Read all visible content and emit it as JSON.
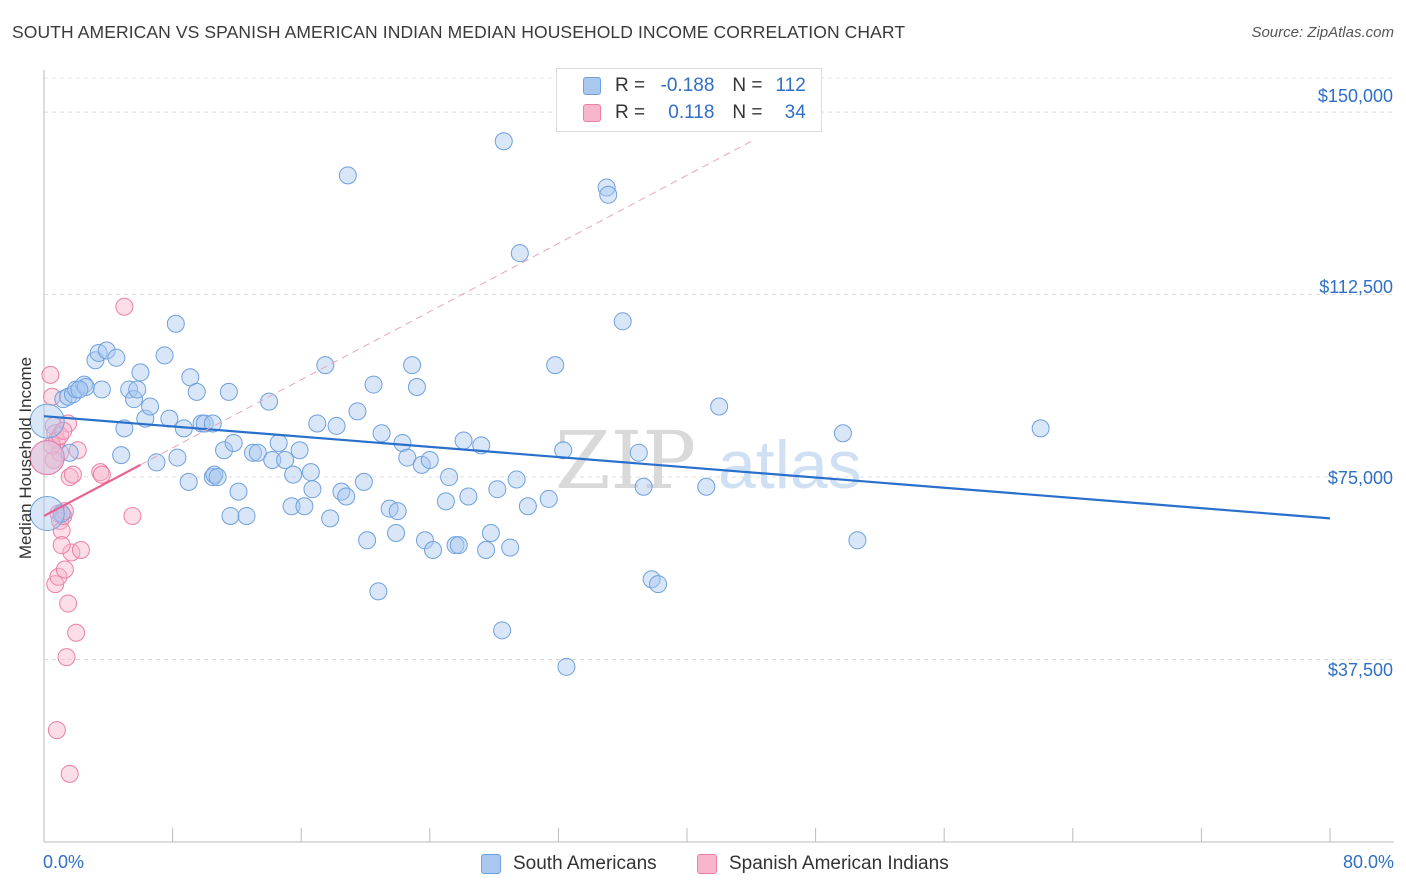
{
  "header": {
    "title": "SOUTH AMERICAN VS SPANISH AMERICAN INDIAN MEDIAN HOUSEHOLD INCOME CORRELATION CHART",
    "source": "Source: ZipAtlas.com"
  },
  "watermark": {
    "zip": "ZIP",
    "atlas": "atlas"
  },
  "legend": {
    "rows": [
      {
        "r_label": "R =",
        "r_value": "-0.188",
        "n_label": "N =",
        "n_value": "112",
        "color": "#a8c8f0"
      },
      {
        "r_label": "R =",
        "r_value": "0.118",
        "n_label": "N =",
        "n_value": "34",
        "color": "#f7b6cb"
      }
    ]
  },
  "bottom_legend": {
    "south": "South Americans",
    "spanish": "Spanish American Indians"
  },
  "chart_data": {
    "type": "scatter",
    "ylabel": "Median Household Income",
    "xlim": [
      0,
      80
    ],
    "ylim": [
      0,
      157000
    ],
    "x_tick_labels": [
      "0.0%",
      "80.0%"
    ],
    "y_ticks": [
      37500,
      75000,
      112500,
      150000
    ],
    "y_tick_labels": [
      "$37,500",
      "$75,000",
      "$112,500",
      "$150,000"
    ],
    "grid": true,
    "colors": {
      "blue": "#6fa1de",
      "pink": "#ec7fa6",
      "blue_line": "#2970cc",
      "pink_line": "#e8638f"
    },
    "series": [
      {
        "name": "South Americans",
        "color": "#a8c8f0",
        "trend": {
          "x": [
            0,
            80
          ],
          "y": [
            87500,
            66500
          ]
        },
        "points": [
          [
            1.2,
            91000
          ],
          [
            1.5,
            91500
          ],
          [
            1.8,
            92000
          ],
          [
            2.0,
            93000
          ],
          [
            2.5,
            94000
          ],
          [
            3.2,
            99000
          ],
          [
            3.4,
            100500
          ],
          [
            3.9,
            101000
          ],
          [
            4.5,
            99500
          ],
          [
            3.6,
            93000
          ],
          [
            5.3,
            93000
          ],
          [
            2.6,
            93500
          ],
          [
            5.0,
            85000
          ],
          [
            4.8,
            79500
          ],
          [
            5.6,
            91000
          ],
          [
            5.8,
            93000
          ],
          [
            6.0,
            96500
          ],
          [
            6.3,
            87000
          ],
          [
            6.6,
            89500
          ],
          [
            7.0,
            78000
          ],
          [
            7.5,
            100000
          ],
          [
            7.8,
            87000
          ],
          [
            8.2,
            106500
          ],
          [
            8.3,
            79000
          ],
          [
            8.7,
            85000
          ],
          [
            9.0,
            74000
          ],
          [
            9.1,
            95500
          ],
          [
            9.5,
            92500
          ],
          [
            9.8,
            86000
          ],
          [
            10.0,
            86000
          ],
          [
            10.5,
            86000
          ],
          [
            10.5,
            75000
          ],
          [
            10.6,
            75500
          ],
          [
            10.8,
            75000
          ],
          [
            11.2,
            80500
          ],
          [
            11.5,
            92500
          ],
          [
            11.6,
            67000
          ],
          [
            11.8,
            82000
          ],
          [
            12.1,
            72000
          ],
          [
            12.6,
            67000
          ],
          [
            13.0,
            80000
          ],
          [
            13.3,
            80000
          ],
          [
            14.0,
            90500
          ],
          [
            14.2,
            78500
          ],
          [
            14.6,
            82000
          ],
          [
            15.0,
            78500
          ],
          [
            15.4,
            69000
          ],
          [
            15.5,
            75500
          ],
          [
            15.9,
            80500
          ],
          [
            16.2,
            69000
          ],
          [
            16.6,
            76000
          ],
          [
            16.7,
            72500
          ],
          [
            17.0,
            86000
          ],
          [
            17.5,
            98000
          ],
          [
            17.8,
            66500
          ],
          [
            18.2,
            85500
          ],
          [
            18.5,
            72000
          ],
          [
            18.8,
            71000
          ],
          [
            18.9,
            137000
          ],
          [
            19.5,
            88500
          ],
          [
            19.9,
            74000
          ],
          [
            20.1,
            62000
          ],
          [
            20.5,
            94000
          ],
          [
            20.8,
            51500
          ],
          [
            21.0,
            84000
          ],
          [
            21.5,
            68500
          ],
          [
            21.9,
            63500
          ],
          [
            22.0,
            68000
          ],
          [
            22.3,
            82000
          ],
          [
            22.6,
            79000
          ],
          [
            22.9,
            98000
          ],
          [
            23.2,
            93500
          ],
          [
            23.5,
            77500
          ],
          [
            23.7,
            62000
          ],
          [
            24.0,
            78500
          ],
          [
            24.2,
            60000
          ],
          [
            25.0,
            70000
          ],
          [
            25.2,
            75000
          ],
          [
            25.6,
            61000
          ],
          [
            25.8,
            61000
          ],
          [
            26.1,
            82500
          ],
          [
            26.4,
            71000
          ],
          [
            27.2,
            81500
          ],
          [
            27.5,
            60000
          ],
          [
            27.8,
            63500
          ],
          [
            28.2,
            72500
          ],
          [
            28.5,
            43500
          ],
          [
            28.6,
            144000
          ],
          [
            29.0,
            60500
          ],
          [
            29.4,
            74500
          ],
          [
            29.6,
            121000
          ],
          [
            30.1,
            69000
          ],
          [
            31.4,
            70500
          ],
          [
            31.8,
            98000
          ],
          [
            32.3,
            80500
          ],
          [
            32.5,
            36000
          ],
          [
            35.0,
            134500
          ],
          [
            35.1,
            133000
          ],
          [
            36.0,
            107000
          ],
          [
            37.0,
            80000
          ],
          [
            37.3,
            73000
          ],
          [
            37.8,
            54000
          ],
          [
            38.2,
            53000
          ],
          [
            41.2,
            73000
          ],
          [
            42.0,
            89500
          ],
          [
            49.7,
            84000
          ],
          [
            50.6,
            62000
          ],
          [
            62.0,
            85000
          ],
          [
            1.1,
            67500
          ],
          [
            1.6,
            80000
          ],
          [
            2.2,
            93000
          ]
        ]
      },
      {
        "name": "Spanish American Indians",
        "color": "#f7b6cb",
        "trend": {
          "x": [
            0,
            6
          ],
          "y": [
            67000,
            77500
          ]
        },
        "points": [
          [
            0.4,
            96000
          ],
          [
            0.5,
            91500
          ],
          [
            0.6,
            85500
          ],
          [
            0.7,
            84000
          ],
          [
            0.8,
            82500
          ],
          [
            1.0,
            80000
          ],
          [
            0.6,
            78500
          ],
          [
            0.9,
            67500
          ],
          [
            1.0,
            66000
          ],
          [
            1.1,
            64000
          ],
          [
            1.2,
            67000
          ],
          [
            0.7,
            53000
          ],
          [
            0.9,
            54500
          ],
          [
            1.3,
            56000
          ],
          [
            1.5,
            49000
          ],
          [
            1.7,
            59500
          ],
          [
            1.6,
            75000
          ],
          [
            1.8,
            75500
          ],
          [
            2.1,
            80500
          ],
          [
            2.3,
            60000
          ],
          [
            2.0,
            43000
          ],
          [
            1.4,
            38000
          ],
          [
            0.8,
            23000
          ],
          [
            1.6,
            14000
          ],
          [
            1.5,
            86000
          ],
          [
            1.3,
            68000
          ],
          [
            1.1,
            61000
          ],
          [
            3.5,
            76000
          ],
          [
            3.6,
            75500
          ],
          [
            5.0,
            110000
          ],
          [
            5.5,
            67000
          ],
          [
            0.5,
            81500
          ],
          [
            1.0,
            83500
          ],
          [
            1.2,
            84500
          ]
        ]
      }
    ],
    "large_points": [
      {
        "series": "South Americans",
        "x": 0.2,
        "y": 86500
      },
      {
        "series": "South Americans",
        "x": 0.2,
        "y": 79000
      },
      {
        "series": "South Americans",
        "x": 0.2,
        "y": 67500
      },
      {
        "series": "Spanish American Indians",
        "x": 0.2,
        "y": 79000
      }
    ]
  }
}
